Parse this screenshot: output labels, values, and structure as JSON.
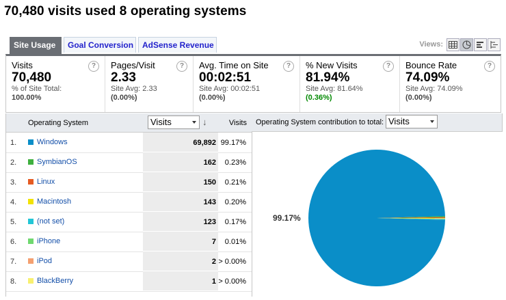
{
  "title": "70,480 visits used 8 operating systems",
  "tabs": [
    {
      "label": "Site Usage",
      "active": true
    },
    {
      "label": "Goal Conversion",
      "active": false
    },
    {
      "label": "AdSense Revenue",
      "active": false
    }
  ],
  "views": {
    "label": "Views:",
    "buttons": [
      "table-view-icon",
      "pie-view-icon",
      "bar-view-icon",
      "pivot-view-icon"
    ],
    "active": "pie-view-icon"
  },
  "metrics": [
    {
      "label": "Visits",
      "value": "70,480",
      "sub": "% of Site Total:",
      "sub2": "100.00%",
      "sub2_color": "#444444"
    },
    {
      "label": "Pages/Visit",
      "value": "2.33",
      "sub": "Site Avg: 2.33",
      "sub2": "(0.00%)",
      "sub2_color": "#444444"
    },
    {
      "label": "Avg. Time on Site",
      "value": "00:02:51",
      "sub": "Site Avg: 00:02:51",
      "sub2": "(0.00%)",
      "sub2_color": "#444444"
    },
    {
      "label": "% New Visits",
      "value": "81.94%",
      "sub": "Site Avg: 81.64%",
      "sub2": "(0.36%)",
      "sub2_color": "#008800"
    },
    {
      "label": "Bounce Rate",
      "value": "74.09%",
      "sub": "Site Avg: 74.09%",
      "sub2": "(0.00%)",
      "sub2_color": "#444444"
    }
  ],
  "table": {
    "col_dimension": "Operating System",
    "metric_select": "Visits",
    "col_metric": "Visits",
    "rows": [
      {
        "num": "1.",
        "name": "Windows",
        "color": "#0a8ec8",
        "value": "69,892",
        "pct": "99.17%"
      },
      {
        "num": "2.",
        "name": "SymbianOS",
        "color": "#3fb03f",
        "value": "162",
        "pct": "0.23%"
      },
      {
        "num": "3.",
        "name": "Linux",
        "color": "#e55b22",
        "value": "150",
        "pct": "0.21%"
      },
      {
        "num": "4.",
        "name": "Macintosh",
        "color": "#f2e205",
        "value": "143",
        "pct": "0.20%"
      },
      {
        "num": "5.",
        "name": "(not set)",
        "color": "#22c6d6",
        "value": "123",
        "pct": "0.17%"
      },
      {
        "num": "6.",
        "name": "iPhone",
        "color": "#6fd86f",
        "value": "7",
        "pct": "0.01%"
      },
      {
        "num": "7.",
        "name": "iPod",
        "color": "#f4a070",
        "value": "2",
        "pct": "> 0.00%"
      },
      {
        "num": "8.",
        "name": "BlackBerry",
        "color": "#f8f070",
        "value": "1",
        "pct": "> 0.00%"
      }
    ]
  },
  "pie": {
    "title": "Operating System contribution to total:",
    "select": "Visits",
    "label": "99.17%"
  },
  "chart_data": {
    "type": "pie",
    "categories": [
      "Windows",
      "SymbianOS",
      "Linux",
      "Macintosh",
      "(not set)",
      "iPhone",
      "iPod",
      "BlackBerry"
    ],
    "values": [
      69892,
      162,
      150,
      143,
      123,
      7,
      2,
      1
    ],
    "colors": [
      "#0a8ec8",
      "#3fb03f",
      "#e55b22",
      "#f2e205",
      "#22c6d6",
      "#6fd86f",
      "#f4a070",
      "#f8f070"
    ]
  }
}
